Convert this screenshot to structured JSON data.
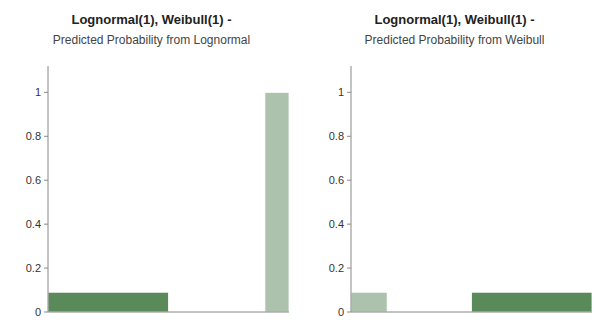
{
  "chart_data": [
    {
      "type": "histogram",
      "title": "Lognormal(1), Weibull(1) -",
      "subtitle": "Predicted Probability from Lognormal",
      "xlim": [
        0,
        1
      ],
      "ylim": [
        0,
        1.12
      ],
      "yticks": [
        0,
        0.2,
        0.4,
        0.6,
        0.8,
        1.0
      ],
      "tick_labels": "y",
      "grid": false,
      "series": [
        {
          "color": "#adc2ad",
          "bins": [
            0.9,
            1.0
          ],
          "values": [
            1.0
          ]
        },
        {
          "color": "#5a8a5a",
          "bins": [
            0.0,
            0.5
          ],
          "values": [
            0.09
          ]
        }
      ]
    },
    {
      "type": "histogram",
      "title": "Lognormal(1), Weibull(1) -",
      "subtitle": "Predicted Probability from Weibull",
      "xlim": [
        0,
        1
      ],
      "ylim": [
        0,
        1.12
      ],
      "yticks": [
        0,
        0.2,
        0.4,
        0.6,
        0.8,
        1.0
      ],
      "tick_labels": "y",
      "grid": false,
      "series": [
        {
          "color": "#5a8a5a",
          "bins": [
            0.5,
            1.0
          ],
          "values": [
            0.09
          ]
        },
        {
          "color": "#adc2ad",
          "bins": [
            0.0,
            0.15
          ],
          "values": [
            0.09
          ]
        }
      ]
    }
  ]
}
